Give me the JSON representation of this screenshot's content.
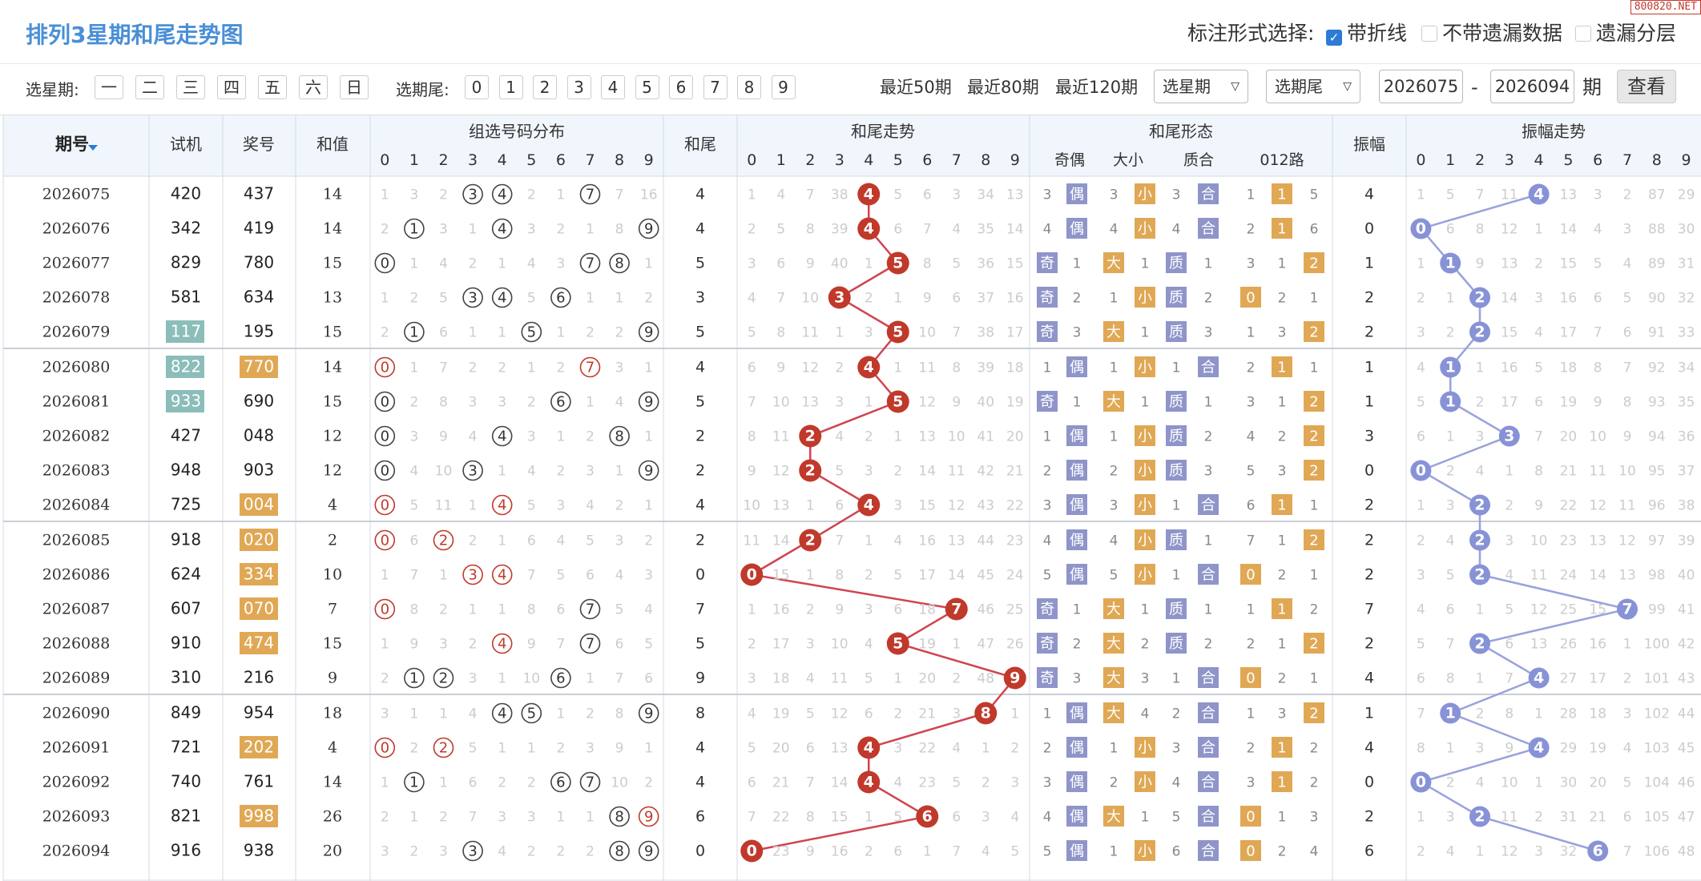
{
  "title": "排列3星期和尾走势图",
  "watermark": "800820.NET",
  "mark_label": "标注形式选择:",
  "mark_options": [
    {
      "label": "带折线",
      "checked": true
    },
    {
      "label": "不带遗漏数据",
      "checked": false
    },
    {
      "label": "遗漏分层",
      "checked": false
    }
  ],
  "toolbar": {
    "weekday_label": "选星期:",
    "weekdays": [
      "一",
      "二",
      "三",
      "四",
      "五",
      "六",
      "日"
    ],
    "tail_label": "选期尾:",
    "tails": [
      "0",
      "1",
      "2",
      "3",
      "4",
      "5",
      "6",
      "7",
      "8",
      "9"
    ],
    "recent": [
      "最近50期",
      "最近80期",
      "最近120期"
    ],
    "select_weekday": "选星期",
    "select_tail": "选期尾",
    "from": "2026075",
    "to": "2026094",
    "dash": "-",
    "period": "期",
    "query": "查看"
  },
  "headers": {
    "issue": "期号",
    "trial": "试机",
    "draw": "奖号",
    "sum": "和值",
    "group": "组选号码分布",
    "tail": "和尾",
    "tailtrend": "和尾走势",
    "form": "和尾形态",
    "amp": "振幅",
    "amptrend": "振幅走势",
    "digits": [
      "0",
      "1",
      "2",
      "3",
      "4",
      "5",
      "6",
      "7",
      "8",
      "9"
    ],
    "forms": [
      "奇偶",
      "大小",
      "质合",
      "012路"
    ]
  },
  "form_labels": {
    "odd": "奇",
    "even": "偶",
    "big": "大",
    "small": "小",
    "prime": "质",
    "comp": "合"
  },
  "colors": {
    "red": "#c0392b",
    "blue": "#8892d6",
    "orange": "#e0a855",
    "teal": "#8bbdb9",
    "purple": "#8f95c9",
    "header": "#f0f6fc",
    "line_red": "#cf4450",
    "line_blue": "#98a2dc",
    "faint": "#cccccc"
  },
  "rows": [
    {
      "issue": "2026075",
      "trial": "420",
      "draw": "437",
      "sum": "14",
      "trialHi": false,
      "drawHi": false,
      "group": [
        "1",
        "3",
        "2",
        "●3",
        "●4",
        "2",
        "1",
        "●7",
        "7",
        "16"
      ],
      "tail": 4,
      "tailMiss": [
        "1",
        "4",
        "7",
        "38",
        "",
        "5",
        "6",
        "3",
        "34",
        "13"
      ],
      "form": [
        "3",
        "偶",
        "3",
        "小",
        "3",
        "合",
        "1",
        "1",
        "5"
      ],
      "amp": 4,
      "ampMiss": [
        "1",
        "5",
        "7",
        "11",
        "",
        "13",
        "3",
        "2",
        "87",
        "29"
      ]
    },
    {
      "issue": "2026076",
      "trial": "342",
      "draw": "419",
      "sum": "14",
      "trialHi": false,
      "drawHi": false,
      "group": [
        "2",
        "●1",
        "3",
        "1",
        "●4",
        "3",
        "2",
        "1",
        "8",
        "●9"
      ],
      "tail": 4,
      "tailMiss": [
        "2",
        "5",
        "8",
        "39",
        "",
        "6",
        "7",
        "4",
        "35",
        "14"
      ],
      "form": [
        "4",
        "偶",
        "4",
        "小",
        "4",
        "合",
        "2",
        "1",
        "6"
      ],
      "amp": 0,
      "ampMiss": [
        "",
        "6",
        "8",
        "12",
        "1",
        "14",
        "4",
        "3",
        "88",
        "30"
      ]
    },
    {
      "issue": "2026077",
      "trial": "829",
      "draw": "780",
      "sum": "15",
      "trialHi": false,
      "drawHi": false,
      "group": [
        "●0",
        "1",
        "4",
        "2",
        "1",
        "4",
        "3",
        "●7",
        "●8",
        "1"
      ],
      "tail": 5,
      "tailMiss": [
        "3",
        "6",
        "9",
        "40",
        "1",
        "",
        "8",
        "5",
        "36",
        "15"
      ],
      "form": [
        "奇",
        "1",
        "大",
        "1",
        "质",
        "1",
        "3",
        "1",
        "2"
      ],
      "amp": 1,
      "ampMiss": [
        "1",
        "",
        "9",
        "13",
        "2",
        "15",
        "5",
        "4",
        "89",
        "31"
      ]
    },
    {
      "issue": "2026078",
      "trial": "581",
      "draw": "634",
      "sum": "13",
      "trialHi": false,
      "drawHi": false,
      "group": [
        "1",
        "2",
        "5",
        "●3",
        "●4",
        "5",
        "●6",
        "1",
        "1",
        "2"
      ],
      "tail": 3,
      "tailMiss": [
        "4",
        "7",
        "10",
        "",
        "2",
        "1",
        "9",
        "6",
        "37",
        "16"
      ],
      "form": [
        "奇",
        "2",
        "1",
        "小",
        "质",
        "2",
        "0",
        "2",
        "1"
      ],
      "amp": 2,
      "ampMiss": [
        "2",
        "1",
        "",
        "14",
        "3",
        "16",
        "6",
        "5",
        "90",
        "32"
      ]
    },
    {
      "issue": "2026079",
      "trial": "117",
      "draw": "195",
      "sum": "15",
      "trialHi": true,
      "drawHi": false,
      "group": [
        "2",
        "●1",
        "6",
        "1",
        "1",
        "●5",
        "1",
        "2",
        "2",
        "●9"
      ],
      "tail": 5,
      "tailMiss": [
        "5",
        "8",
        "11",
        "1",
        "3",
        "",
        "10",
        "7",
        "38",
        "17"
      ],
      "form": [
        "奇",
        "3",
        "大",
        "1",
        "质",
        "3",
        "1",
        "3",
        "2"
      ],
      "amp": 2,
      "ampMiss": [
        "3",
        "2",
        "",
        "15",
        "4",
        "17",
        "7",
        "6",
        "91",
        "33"
      ]
    },
    {
      "issue": "2026080",
      "trial": "822",
      "draw": "770",
      "sum": "14",
      "trialHi": true,
      "drawHi": true,
      "group": [
        "●0",
        "1",
        "7",
        "2",
        "2",
        "1",
        "2",
        "●7",
        "3",
        "1"
      ],
      "tail": 4,
      "tailMiss": [
        "6",
        "9",
        "12",
        "2",
        "",
        "1",
        "11",
        "8",
        "39",
        "18"
      ],
      "form": [
        "1",
        "偶",
        "1",
        "小",
        "1",
        "合",
        "2",
        "1",
        "1"
      ],
      "amp": 1,
      "ampMiss": [
        "4",
        "",
        "1",
        "16",
        "5",
        "18",
        "8",
        "7",
        "92",
        "34"
      ]
    },
    {
      "issue": "2026081",
      "trial": "933",
      "draw": "690",
      "sum": "15",
      "trialHi": true,
      "drawHi": false,
      "group": [
        "●0",
        "2",
        "8",
        "3",
        "3",
        "2",
        "●6",
        "1",
        "4",
        "●9"
      ],
      "tail": 5,
      "tailMiss": [
        "7",
        "10",
        "13",
        "3",
        "1",
        "",
        "12",
        "9",
        "40",
        "19"
      ],
      "form": [
        "奇",
        "1",
        "大",
        "1",
        "质",
        "1",
        "3",
        "1",
        "2"
      ],
      "amp": 1,
      "ampMiss": [
        "5",
        "",
        "2",
        "17",
        "6",
        "19",
        "9",
        "8",
        "93",
        "35"
      ]
    },
    {
      "issue": "2026082",
      "trial": "427",
      "draw": "048",
      "sum": "12",
      "trialHi": false,
      "drawHi": false,
      "group": [
        "●0",
        "3",
        "9",
        "4",
        "●4",
        "3",
        "1",
        "2",
        "●8",
        "1"
      ],
      "tail": 2,
      "tailMiss": [
        "8",
        "11",
        "",
        "4",
        "2",
        "1",
        "13",
        "10",
        "41",
        "20"
      ],
      "form": [
        "1",
        "偶",
        "1",
        "小",
        "质",
        "2",
        "4",
        "2",
        "2"
      ],
      "amp": 3,
      "ampMiss": [
        "6",
        "1",
        "3",
        "",
        "7",
        "20",
        "10",
        "9",
        "94",
        "36"
      ]
    },
    {
      "issue": "2026083",
      "trial": "948",
      "draw": "903",
      "sum": "12",
      "trialHi": false,
      "drawHi": false,
      "group": [
        "●0",
        "4",
        "10",
        "●3",
        "1",
        "4",
        "2",
        "3",
        "1",
        "●9"
      ],
      "tail": 2,
      "tailMiss": [
        "9",
        "12",
        "",
        "5",
        "3",
        "2",
        "14",
        "11",
        "42",
        "21"
      ],
      "form": [
        "2",
        "偶",
        "2",
        "小",
        "质",
        "3",
        "5",
        "3",
        "2"
      ],
      "amp": 0,
      "ampMiss": [
        "",
        "2",
        "4",
        "1",
        "8",
        "21",
        "11",
        "10",
        "95",
        "37"
      ]
    },
    {
      "issue": "2026084",
      "trial": "725",
      "draw": "004",
      "sum": "4",
      "trialHi": false,
      "drawHi": true,
      "group": [
        "●0",
        "5",
        "11",
        "1",
        "●4",
        "5",
        "3",
        "4",
        "2",
        "1"
      ],
      "tail": 4,
      "tailMiss": [
        "10",
        "13",
        "1",
        "6",
        "",
        "3",
        "15",
        "12",
        "43",
        "22"
      ],
      "form": [
        "3",
        "偶",
        "3",
        "小",
        "1",
        "合",
        "6",
        "1",
        "1"
      ],
      "amp": 2,
      "ampMiss": [
        "1",
        "3",
        "",
        "2",
        "9",
        "22",
        "12",
        "11",
        "96",
        "38"
      ]
    },
    {
      "issue": "2026085",
      "trial": "918",
      "draw": "020",
      "sum": "2",
      "trialHi": false,
      "drawHi": true,
      "group": [
        "●0",
        "6",
        "●2",
        "2",
        "1",
        "6",
        "4",
        "5",
        "3",
        "2"
      ],
      "tail": 2,
      "tailMiss": [
        "11",
        "14",
        "",
        "7",
        "1",
        "4",
        "16",
        "13",
        "44",
        "23"
      ],
      "form": [
        "4",
        "偶",
        "4",
        "小",
        "质",
        "1",
        "7",
        "1",
        "2"
      ],
      "amp": 2,
      "ampMiss": [
        "2",
        "4",
        "",
        "3",
        "10",
        "23",
        "13",
        "12",
        "97",
        "39"
      ]
    },
    {
      "issue": "2026086",
      "trial": "624",
      "draw": "334",
      "sum": "10",
      "trialHi": false,
      "drawHi": true,
      "group": [
        "1",
        "7",
        "1",
        "●3",
        "●4",
        "7",
        "5",
        "6",
        "4",
        "3"
      ],
      "tail": 0,
      "tailMiss": [
        "",
        "15",
        "1",
        "8",
        "2",
        "5",
        "17",
        "14",
        "45",
        "24"
      ],
      "form": [
        "5",
        "偶",
        "5",
        "小",
        "1",
        "合",
        "0",
        "2",
        "1"
      ],
      "amp": 2,
      "ampMiss": [
        "3",
        "5",
        "",
        "4",
        "11",
        "24",
        "14",
        "13",
        "98",
        "40"
      ]
    },
    {
      "issue": "2026087",
      "trial": "607",
      "draw": "070",
      "sum": "7",
      "trialHi": false,
      "drawHi": true,
      "group": [
        "●0",
        "8",
        "2",
        "1",
        "1",
        "8",
        "6",
        "●7",
        "5",
        "4"
      ],
      "tail": 7,
      "tailMiss": [
        "1",
        "16",
        "2",
        "9",
        "3",
        "6",
        "18",
        "",
        "46",
        "25"
      ],
      "form": [
        "奇",
        "1",
        "大",
        "1",
        "质",
        "1",
        "1",
        "1",
        "2"
      ],
      "amp": 7,
      "ampMiss": [
        "4",
        "6",
        "1",
        "5",
        "12",
        "25",
        "15",
        "",
        "99",
        "41"
      ]
    },
    {
      "issue": "2026088",
      "trial": "910",
      "draw": "474",
      "sum": "15",
      "trialHi": false,
      "drawHi": true,
      "group": [
        "1",
        "9",
        "3",
        "2",
        "●4",
        "9",
        "7",
        "●7",
        "6",
        "5"
      ],
      "tail": 5,
      "tailMiss": [
        "2",
        "17",
        "3",
        "10",
        "4",
        "",
        "19",
        "1",
        "47",
        "26"
      ],
      "form": [
        "奇",
        "2",
        "大",
        "2",
        "质",
        "2",
        "2",
        "1",
        "2"
      ],
      "amp": 2,
      "ampMiss": [
        "5",
        "7",
        "",
        "6",
        "13",
        "26",
        "16",
        "1",
        "100",
        "42"
      ]
    },
    {
      "issue": "2026089",
      "trial": "310",
      "draw": "216",
      "sum": "9",
      "trialHi": false,
      "drawHi": false,
      "group": [
        "2",
        "●1",
        "●2",
        "3",
        "1",
        "10",
        "●6",
        "1",
        "7",
        "6"
      ],
      "tail": 9,
      "tailMiss": [
        "3",
        "18",
        "4",
        "11",
        "5",
        "1",
        "20",
        "2",
        "48",
        ""
      ],
      "form": [
        "奇",
        "3",
        "大",
        "3",
        "1",
        "合",
        "0",
        "2",
        "1"
      ],
      "amp": 4,
      "ampMiss": [
        "6",
        "8",
        "1",
        "7",
        "",
        "27",
        "17",
        "2",
        "101",
        "43"
      ]
    },
    {
      "issue": "2026090",
      "trial": "849",
      "draw": "954",
      "sum": "18",
      "trialHi": false,
      "drawHi": false,
      "group": [
        "3",
        "1",
        "1",
        "4",
        "●4",
        "●5",
        "1",
        "2",
        "8",
        "●9"
      ],
      "tail": 8,
      "tailMiss": [
        "4",
        "19",
        "5",
        "12",
        "6",
        "2",
        "21",
        "3",
        "",
        "1"
      ],
      "form": [
        "1",
        "偶",
        "大",
        "4",
        "2",
        "合",
        "1",
        "3",
        "2"
      ],
      "amp": 1,
      "ampMiss": [
        "7",
        "",
        "2",
        "8",
        "1",
        "28",
        "18",
        "3",
        "102",
        "44"
      ]
    },
    {
      "issue": "2026091",
      "trial": "721",
      "draw": "202",
      "sum": "4",
      "trialHi": false,
      "drawHi": true,
      "group": [
        "●0",
        "2",
        "●2",
        "5",
        "1",
        "1",
        "2",
        "3",
        "9",
        "1"
      ],
      "tail": 4,
      "tailMiss": [
        "5",
        "20",
        "6",
        "13",
        "",
        "3",
        "22",
        "4",
        "1",
        "2"
      ],
      "form": [
        "2",
        "偶",
        "1",
        "小",
        "3",
        "合",
        "2",
        "1",
        "2"
      ],
      "amp": 4,
      "ampMiss": [
        "8",
        "1",
        "3",
        "9",
        "",
        "29",
        "19",
        "4",
        "103",
        "45"
      ]
    },
    {
      "issue": "2026092",
      "trial": "740",
      "draw": "761",
      "sum": "14",
      "trialHi": false,
      "drawHi": false,
      "group": [
        "1",
        "●1",
        "1",
        "6",
        "2",
        "2",
        "●6",
        "●7",
        "10",
        "2"
      ],
      "tail": 4,
      "tailMiss": [
        "6",
        "21",
        "7",
        "14",
        "",
        "4",
        "23",
        "5",
        "2",
        "3"
      ],
      "form": [
        "3",
        "偶",
        "2",
        "小",
        "4",
        "合",
        "3",
        "1",
        "2"
      ],
      "amp": 0,
      "ampMiss": [
        "",
        "2",
        "4",
        "10",
        "1",
        "30",
        "20",
        "5",
        "104",
        "46"
      ]
    },
    {
      "issue": "2026093",
      "trial": "821",
      "draw": "998",
      "sum": "26",
      "trialHi": false,
      "drawHi": true,
      "group": [
        "2",
        "1",
        "2",
        "7",
        "3",
        "3",
        "1",
        "1",
        "●8",
        "●9"
      ],
      "tail": 6,
      "tailMiss": [
        "7",
        "22",
        "8",
        "15",
        "1",
        "5",
        "",
        "6",
        "3",
        "4"
      ],
      "form": [
        "4",
        "偶",
        "大",
        "1",
        "5",
        "合",
        "0",
        "1",
        "3"
      ],
      "amp": 2,
      "ampMiss": [
        "1",
        "3",
        "",
        "11",
        "2",
        "31",
        "21",
        "6",
        "105",
        "47"
      ]
    },
    {
      "issue": "2026094",
      "trial": "916",
      "draw": "938",
      "sum": "20",
      "trialHi": false,
      "drawHi": false,
      "group": [
        "3",
        "2",
        "3",
        "●3",
        "4",
        "2",
        "2",
        "2",
        "●8",
        "●9"
      ],
      "tail": 0,
      "tailMiss": [
        "",
        "23",
        "9",
        "16",
        "2",
        "6",
        "1",
        "7",
        "4",
        "5"
      ],
      "form": [
        "5",
        "偶",
        "1",
        "小",
        "6",
        "合",
        "0",
        "2",
        "4"
      ],
      "amp": 6,
      "ampMiss": [
        "2",
        "4",
        "1",
        "12",
        "3",
        "32",
        "",
        "7",
        "106",
        "48"
      ]
    }
  ]
}
